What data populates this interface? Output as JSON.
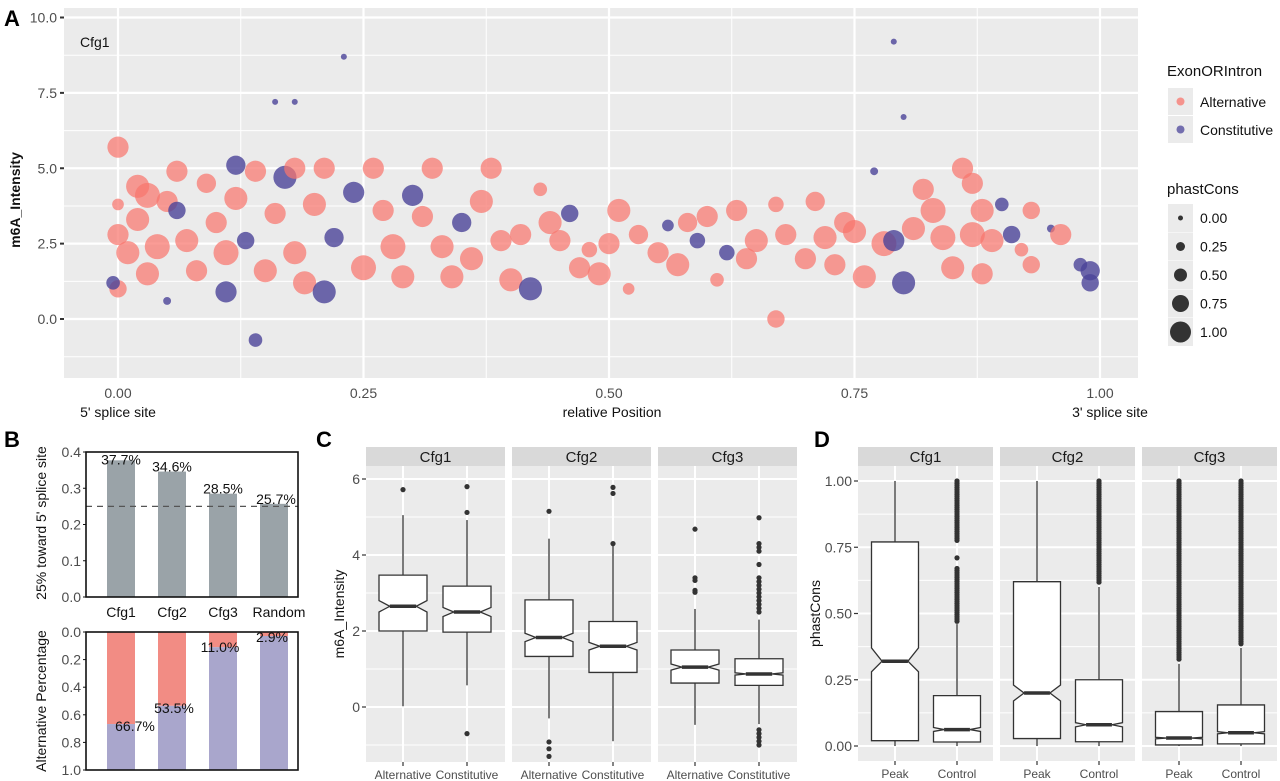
{
  "colors": {
    "alternative": "#F8766D",
    "constitutive": "#4B4499",
    "panel_bg": "#EBEBEB",
    "strip_bg": "#D9D9D9",
    "bar_gray": "#9AA3A8",
    "bar_alt": "#F28C84",
    "bar_const": "#A9A6CC"
  },
  "panels": {
    "A": "A",
    "B": "B",
    "C": "C",
    "D": "D"
  },
  "chart_data": [
    {
      "id": "A",
      "type": "scatter",
      "title": "",
      "annotation": "Cfg1",
      "xlabel": "relative Position",
      "xlabel_left": "5' splice site",
      "xlabel_right": "3' splice site",
      "ylabel": "m6A_Intensity",
      "xlim": [
        -0.05,
        1.04
      ],
      "ylim": [
        -1.9,
        10.0
      ],
      "xticks": [
        "0.00",
        "0.25",
        "0.50",
        "0.75",
        "1.00"
      ],
      "yticks": [
        "0.0",
        "2.5",
        "5.0",
        "7.5",
        "10.0"
      ],
      "grid": true,
      "legend": {
        "position": "right",
        "color_title": "ExonORIntron",
        "color_items": [
          "Alternative",
          "Constitutive"
        ],
        "size_title": "phastCons",
        "size_items": [
          "0.00",
          "0.25",
          "0.50",
          "0.75",
          "1.00"
        ]
      },
      "note": "Approximate representative points (x, y, phastCons size, group); A=Alternative, C=Constitutive",
      "points": [
        [
          0.0,
          5.7,
          0.8,
          "A"
        ],
        [
          0.0,
          2.8,
          0.8,
          "A"
        ],
        [
          0.0,
          1.0,
          0.6,
          "A"
        ],
        [
          -0.005,
          1.2,
          0.4,
          "C"
        ],
        [
          0.0,
          3.8,
          0.3,
          "A"
        ],
        [
          0.01,
          2.2,
          0.9,
          "A"
        ],
        [
          0.02,
          4.4,
          0.9,
          "A"
        ],
        [
          0.03,
          4.1,
          1.0,
          "A"
        ],
        [
          0.02,
          3.3,
          0.9,
          "A"
        ],
        [
          0.04,
          2.4,
          1.0,
          "A"
        ],
        [
          0.03,
          1.5,
          0.9,
          "A"
        ],
        [
          0.05,
          3.9,
          0.8,
          "A"
        ],
        [
          0.06,
          4.9,
          0.8,
          "A"
        ],
        [
          0.06,
          3.6,
          0.6,
          "C"
        ],
        [
          0.07,
          2.6,
          0.9,
          "A"
        ],
        [
          0.05,
          0.6,
          0.1,
          "C"
        ],
        [
          0.08,
          1.6,
          0.8,
          "A"
        ],
        [
          0.09,
          4.5,
          0.7,
          "A"
        ],
        [
          0.1,
          3.2,
          0.8,
          "A"
        ],
        [
          0.11,
          2.2,
          1.0,
          "A"
        ],
        [
          0.11,
          0.9,
          0.8,
          "C"
        ],
        [
          0.12,
          4.0,
          0.9,
          "A"
        ],
        [
          0.12,
          5.1,
          0.7,
          "C"
        ],
        [
          0.13,
          2.6,
          0.6,
          "C"
        ],
        [
          0.14,
          4.9,
          0.8,
          "A"
        ],
        [
          0.14,
          -0.7,
          0.4,
          "C"
        ],
        [
          0.15,
          1.6,
          0.9,
          "A"
        ],
        [
          0.16,
          3.5,
          0.8,
          "A"
        ],
        [
          0.16,
          7.2,
          0.0,
          "C"
        ],
        [
          0.17,
          4.7,
          0.9,
          "C"
        ],
        [
          0.18,
          5.0,
          0.8,
          "A"
        ],
        [
          0.18,
          2.2,
          0.9,
          "A"
        ],
        [
          0.18,
          7.2,
          0.0,
          "C"
        ],
        [
          0.19,
          1.2,
          0.9,
          "A"
        ],
        [
          0.2,
          3.8,
          0.9,
          "A"
        ],
        [
          0.21,
          5.0,
          0.8,
          "A"
        ],
        [
          0.22,
          2.7,
          0.7,
          "C"
        ],
        [
          0.21,
          0.9,
          0.9,
          "C"
        ],
        [
          0.23,
          8.7,
          0.0,
          "C"
        ],
        [
          0.24,
          4.2,
          0.8,
          "C"
        ],
        [
          0.25,
          1.7,
          1.0,
          "A"
        ],
        [
          0.26,
          5.0,
          0.8,
          "A"
        ],
        [
          0.27,
          3.6,
          0.8,
          "A"
        ],
        [
          0.28,
          2.4,
          1.0,
          "A"
        ],
        [
          0.29,
          1.4,
          0.9,
          "A"
        ],
        [
          0.3,
          4.1,
          0.8,
          "C"
        ],
        [
          0.31,
          3.4,
          0.8,
          "A"
        ],
        [
          0.32,
          5.0,
          0.8,
          "A"
        ],
        [
          0.33,
          2.4,
          0.9,
          "A"
        ],
        [
          0.34,
          1.4,
          0.9,
          "A"
        ],
        [
          0.35,
          3.2,
          0.7,
          "C"
        ],
        [
          0.36,
          2.0,
          0.9,
          "A"
        ],
        [
          0.37,
          3.9,
          0.9,
          "A"
        ],
        [
          0.38,
          5.0,
          0.8,
          "A"
        ],
        [
          0.39,
          2.6,
          0.8,
          "A"
        ],
        [
          0.4,
          1.3,
          0.9,
          "A"
        ],
        [
          0.41,
          2.8,
          0.8,
          "A"
        ],
        [
          0.42,
          1.0,
          0.9,
          "C"
        ],
        [
          0.43,
          4.3,
          0.4,
          "A"
        ],
        [
          0.44,
          3.2,
          0.9,
          "A"
        ],
        [
          0.45,
          2.6,
          0.8,
          "A"
        ],
        [
          0.46,
          3.5,
          0.6,
          "C"
        ],
        [
          0.47,
          1.7,
          0.8,
          "A"
        ],
        [
          0.48,
          2.3,
          0.5,
          "A"
        ],
        [
          0.49,
          1.5,
          0.9,
          "A"
        ],
        [
          0.5,
          2.5,
          0.8,
          "A"
        ],
        [
          0.51,
          3.6,
          0.9,
          "A"
        ],
        [
          0.52,
          1.0,
          0.3,
          "A"
        ],
        [
          0.53,
          2.8,
          0.7,
          "A"
        ],
        [
          0.55,
          2.2,
          0.8,
          "A"
        ],
        [
          0.56,
          3.1,
          0.3,
          "C"
        ],
        [
          0.57,
          1.8,
          0.9,
          "A"
        ],
        [
          0.58,
          3.2,
          0.7,
          "A"
        ],
        [
          0.59,
          2.6,
          0.5,
          "C"
        ],
        [
          0.6,
          3.4,
          0.8,
          "A"
        ],
        [
          0.61,
          1.3,
          0.4,
          "A"
        ],
        [
          0.62,
          2.2,
          0.5,
          "C"
        ],
        [
          0.63,
          3.6,
          0.8,
          "A"
        ],
        [
          0.64,
          2.0,
          0.8,
          "A"
        ],
        [
          0.65,
          2.6,
          0.9,
          "A"
        ],
        [
          0.67,
          0.0,
          0.6,
          "A"
        ],
        [
          0.67,
          3.8,
          0.5,
          "A"
        ],
        [
          0.68,
          2.8,
          0.8,
          "A"
        ],
        [
          0.7,
          2.0,
          0.8,
          "A"
        ],
        [
          0.71,
          3.9,
          0.7,
          "A"
        ],
        [
          0.72,
          2.7,
          0.9,
          "A"
        ],
        [
          0.73,
          1.8,
          0.8,
          "A"
        ],
        [
          0.74,
          3.2,
          0.8,
          "A"
        ],
        [
          0.75,
          2.9,
          0.9,
          "A"
        ],
        [
          0.76,
          1.4,
          0.9,
          "A"
        ],
        [
          0.77,
          4.9,
          0.1,
          "C"
        ],
        [
          0.78,
          2.5,
          1.0,
          "A"
        ],
        [
          0.79,
          2.6,
          0.8,
          "C"
        ],
        [
          0.79,
          9.2,
          0.0,
          "C"
        ],
        [
          0.8,
          1.2,
          0.9,
          "C"
        ],
        [
          0.8,
          6.7,
          0.0,
          "C"
        ],
        [
          0.81,
          3.0,
          0.9,
          "A"
        ],
        [
          0.82,
          4.3,
          0.8,
          "A"
        ],
        [
          0.83,
          3.6,
          1.0,
          "A"
        ],
        [
          0.84,
          2.7,
          1.0,
          "A"
        ],
        [
          0.85,
          1.7,
          0.9,
          "A"
        ],
        [
          0.86,
          5.0,
          0.8,
          "A"
        ],
        [
          0.87,
          4.5,
          0.8,
          "A"
        ],
        [
          0.87,
          2.8,
          1.0,
          "A"
        ],
        [
          0.88,
          3.6,
          0.9,
          "A"
        ],
        [
          0.88,
          1.5,
          0.8,
          "A"
        ],
        [
          0.89,
          2.6,
          0.9,
          "A"
        ],
        [
          0.9,
          3.8,
          0.4,
          "C"
        ],
        [
          0.91,
          2.8,
          0.6,
          "C"
        ],
        [
          0.92,
          2.3,
          0.4,
          "A"
        ],
        [
          0.93,
          3.6,
          0.6,
          "A"
        ],
        [
          0.93,
          1.8,
          0.6,
          "A"
        ],
        [
          0.95,
          3.0,
          0.1,
          "C"
        ],
        [
          0.96,
          2.8,
          0.8,
          "A"
        ],
        [
          0.98,
          1.8,
          0.4,
          "C"
        ],
        [
          0.99,
          1.6,
          0.7,
          "C"
        ],
        [
          0.99,
          1.2,
          0.6,
          "C"
        ]
      ]
    },
    {
      "id": "B_top",
      "type": "bar",
      "ylabel": "25% toward 5' splice site",
      "categories": [
        "Cfg1",
        "Cfg2",
        "Cfg3",
        "Random"
      ],
      "values": [
        0.377,
        0.346,
        0.285,
        0.257
      ],
      "data_labels": [
        "37.7%",
        "34.6%",
        "28.5%",
        "25.7%"
      ],
      "yticks": [
        "0.0",
        "0.1",
        "0.2",
        "0.3",
        "0.4"
      ],
      "ylim": [
        0,
        0.4
      ],
      "reference_line": 0.25
    },
    {
      "id": "B_bottom",
      "type": "bar",
      "ylabel": "Alternative  Percentage",
      "categories": [
        "Cfg1",
        "Cfg2",
        "Cfg3",
        "Random"
      ],
      "series": [
        {
          "name": "Alternative",
          "values": [
            0.667,
            0.535,
            0.11,
            0.029
          ]
        },
        {
          "name": "Constitutive",
          "values": [
            0.333,
            0.465,
            0.89,
            0.971
          ]
        }
      ],
      "data_labels": [
        "66.7%",
        "53.5%",
        "11.0%",
        "2.9%"
      ],
      "yticks": [
        "0.0",
        "0.2",
        "0.4",
        "0.6",
        "0.8",
        "1.0"
      ],
      "ylim": [
        0,
        1.0
      ],
      "reversed_axis": true
    },
    {
      "id": "C",
      "type": "box",
      "ylabel": "m6A_Intensity",
      "facets": [
        "Cfg1",
        "Cfg2",
        "Cfg3"
      ],
      "categories": [
        "Alternative",
        "Constitutive"
      ],
      "yticks": [
        "0",
        "2",
        "4",
        "6"
      ],
      "ylim": [
        -1.45,
        6.45
      ],
      "boxes": [
        {
          "facet": "Cfg1",
          "group": "Alternative",
          "q1": 2.0,
          "median": 2.65,
          "q3": 3.47,
          "notch_lo": 2.5,
          "notch_hi": 2.8,
          "wlo": 0.02,
          "whi": 5.05,
          "outliers": [
            5.72
          ]
        },
        {
          "facet": "Cfg1",
          "group": "Constitutive",
          "q1": 1.97,
          "median": 2.5,
          "q3": 3.18,
          "notch_lo": 2.38,
          "notch_hi": 2.62,
          "wlo": 0.57,
          "whi": 4.92,
          "outliers": [
            5.8,
            5.12,
            -0.7
          ]
        },
        {
          "facet": "Cfg2",
          "group": "Alternative",
          "q1": 1.33,
          "median": 1.83,
          "q3": 2.82,
          "notch_lo": 1.72,
          "notch_hi": 1.94,
          "wlo": -0.3,
          "whi": 4.43,
          "outliers": [
            5.15,
            -0.92,
            -1.1,
            -1.3
          ]
        },
        {
          "facet": "Cfg2",
          "group": "Constitutive",
          "q1": 0.91,
          "median": 1.6,
          "q3": 2.25,
          "notch_lo": 1.5,
          "notch_hi": 1.7,
          "wlo": -0.9,
          "whi": 4.3,
          "outliers": [
            5.78,
            5.62,
            4.3
          ]
        },
        {
          "facet": "Cfg3",
          "group": "Alternative",
          "q1": 0.63,
          "median": 1.05,
          "q3": 1.5,
          "notch_lo": 0.97,
          "notch_hi": 1.13,
          "wlo": -0.47,
          "whi": 2.58,
          "outliers": [
            4.68,
            3.4,
            3.33,
            3.07,
            3.02
          ]
        },
        {
          "facet": "Cfg3",
          "group": "Constitutive",
          "q1": 0.57,
          "median": 0.87,
          "q3": 1.27,
          "notch_lo": 0.84,
          "notch_hi": 0.9,
          "wlo": -0.45,
          "whi": 2.3,
          "outliers": [
            4.98,
            4.3,
            4.2,
            4.1,
            3.75,
            3.4,
            3.3,
            3.2,
            3.1,
            3.0,
            2.9,
            2.8,
            2.7,
            2.6,
            2.5,
            -0.6,
            -0.7,
            -0.8,
            -0.9,
            -1.0
          ]
        }
      ]
    },
    {
      "id": "D",
      "type": "box",
      "ylabel": "phastCons",
      "facets": [
        "Cfg1",
        "Cfg2",
        "Cfg3"
      ],
      "categories": [
        "Peak",
        "Control"
      ],
      "yticks": [
        "0.00",
        "0.25",
        "0.50",
        "0.75",
        "1.00"
      ],
      "ylim": [
        -0.05,
        1.06
      ],
      "boxes": [
        {
          "facet": "Cfg1",
          "group": "Peak",
          "q1": 0.02,
          "median": 0.32,
          "q3": 0.77,
          "notch_lo": 0.28,
          "notch_hi": 0.37,
          "wlo": 0.0,
          "whi": 1.0,
          "outliers": []
        },
        {
          "facet": "Cfg1",
          "group": "Control",
          "q1": 0.015,
          "median": 0.062,
          "q3": 0.19,
          "notch_lo": 0.055,
          "notch_hi": 0.07,
          "wlo": 0.0,
          "whi": 0.46,
          "outliers_range": [
            [
              0.47,
              0.67
            ],
            [
              0.71,
              0.71
            ],
            [
              0.77,
              1.0
            ]
          ]
        },
        {
          "facet": "Cfg2",
          "group": "Peak",
          "q1": 0.028,
          "median": 0.2,
          "q3": 0.62,
          "notch_lo": 0.17,
          "notch_hi": 0.23,
          "wlo": 0.0,
          "whi": 1.0,
          "outliers": []
        },
        {
          "facet": "Cfg2",
          "group": "Control",
          "q1": 0.016,
          "median": 0.08,
          "q3": 0.25,
          "notch_lo": 0.072,
          "notch_hi": 0.088,
          "wlo": 0.0,
          "whi": 0.6,
          "outliers_range": [
            [
              0.61,
              1.0
            ]
          ]
        },
        {
          "facet": "Cfg3",
          "group": "Peak",
          "q1": 0.004,
          "median": 0.03,
          "q3": 0.13,
          "notch_lo": 0.027,
          "notch_hi": 0.033,
          "wlo": 0.0,
          "whi": 0.31,
          "outliers_range": [
            [
              0.32,
              1.0
            ]
          ]
        },
        {
          "facet": "Cfg3",
          "group": "Control",
          "q1": 0.008,
          "median": 0.05,
          "q3": 0.155,
          "notch_lo": 0.046,
          "notch_hi": 0.054,
          "wlo": 0.0,
          "whi": 0.37,
          "outliers_range": [
            [
              0.38,
              1.0
            ]
          ]
        }
      ]
    }
  ]
}
